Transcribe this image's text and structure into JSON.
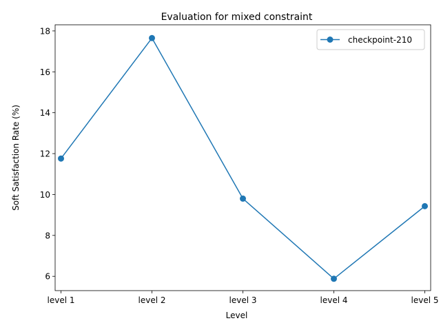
{
  "chart_data": {
    "type": "line",
    "title": "Evaluation for mixed constraint",
    "xlabel": "Level",
    "ylabel": "Soft Satisfaction Rate (%)",
    "categories": [
      "level 1",
      "level 2",
      "level 3",
      "level 4",
      "level 5"
    ],
    "ylim": [
      5.3,
      18.3
    ],
    "yticks": [
      "6",
      "8",
      "10",
      "12",
      "14",
      "16",
      "18"
    ],
    "grid": false,
    "legend_position": "top-right",
    "series": [
      {
        "name": "checkpoint-210",
        "values": [
          11.76,
          17.65,
          9.8,
          5.88,
          9.43
        ],
        "color": "#1f77b4",
        "marker": "circle"
      }
    ]
  }
}
